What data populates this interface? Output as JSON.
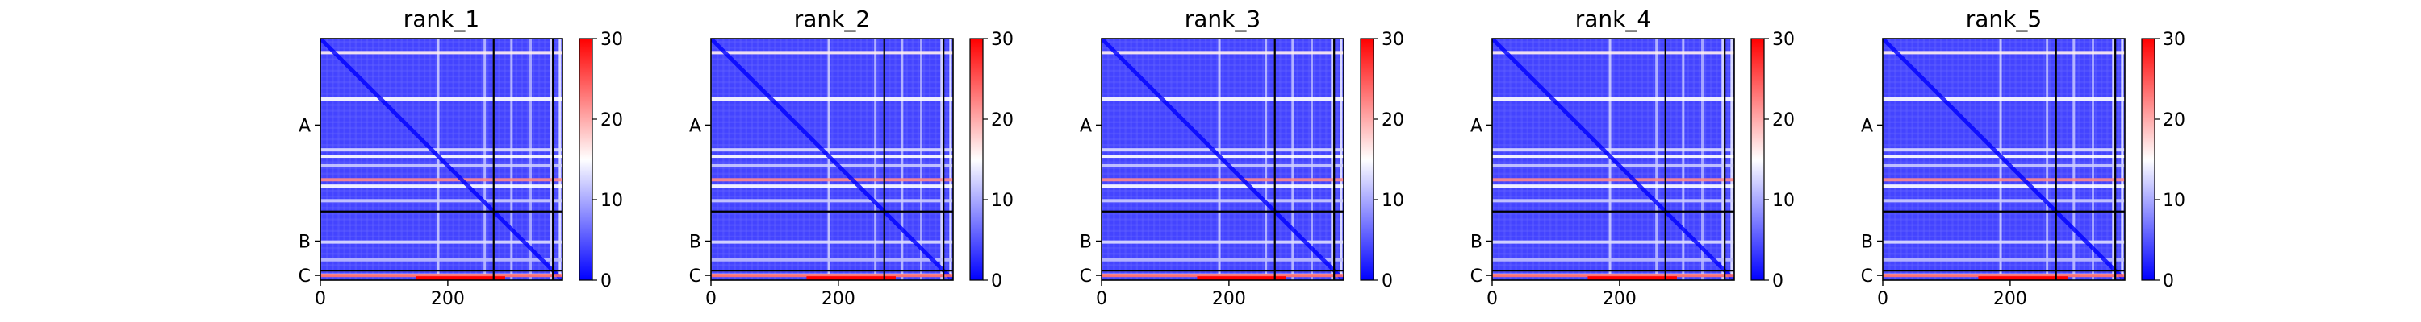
{
  "chart_data": {
    "type": "heatmap",
    "colormap": "bwr",
    "colors": {
      "low": "#0000ff",
      "mid": "#ffffff",
      "high": "#ff0000",
      "frame": "#000000"
    },
    "vmin": 0,
    "vmax": 30,
    "colorbar_ticks": [
      "0",
      "10",
      "20",
      "30"
    ],
    "x_ticks": [
      {
        "value": 0,
        "label": "0"
      },
      {
        "value": 200,
        "label": "200"
      }
    ],
    "x_range": [
      0,
      380
    ],
    "y_range": [
      0,
      380
    ],
    "chain_boundaries": [
      272,
      365
    ],
    "chain_labels": [
      {
        "label": "A",
        "start": 0,
        "end": 272
      },
      {
        "label": "B",
        "start": 272,
        "end": 365
      },
      {
        "label": "C",
        "start": 365,
        "end": 380
      }
    ],
    "bright_row_bands": [
      {
        "y": 22,
        "value": 16
      },
      {
        "y": 95,
        "value": 15
      },
      {
        "y": 175,
        "value": 13
      },
      {
        "y": 185,
        "value": 15
      },
      {
        "y": 200,
        "value": 12
      },
      {
        "y": 222,
        "value": 22
      },
      {
        "y": 232,
        "value": 15
      },
      {
        "y": 255,
        "value": 12
      },
      {
        "y": 320,
        "value": 13
      },
      {
        "y": 348,
        "value": 11
      },
      {
        "y": 372,
        "value": 14
      }
    ],
    "bright_col_bands": [
      {
        "x": 185,
        "value": 13
      },
      {
        "x": 258,
        "value": 12
      },
      {
        "x": 300,
        "value": 12
      },
      {
        "x": 330,
        "value": 11
      },
      {
        "x": 362,
        "value": 14
      },
      {
        "x": 376,
        "value": 15
      }
    ],
    "panels": [
      {
        "title": "rank_1"
      },
      {
        "title": "rank_2"
      },
      {
        "title": "rank_3"
      },
      {
        "title": "rank_4"
      },
      {
        "title": "rank_5"
      }
    ]
  }
}
